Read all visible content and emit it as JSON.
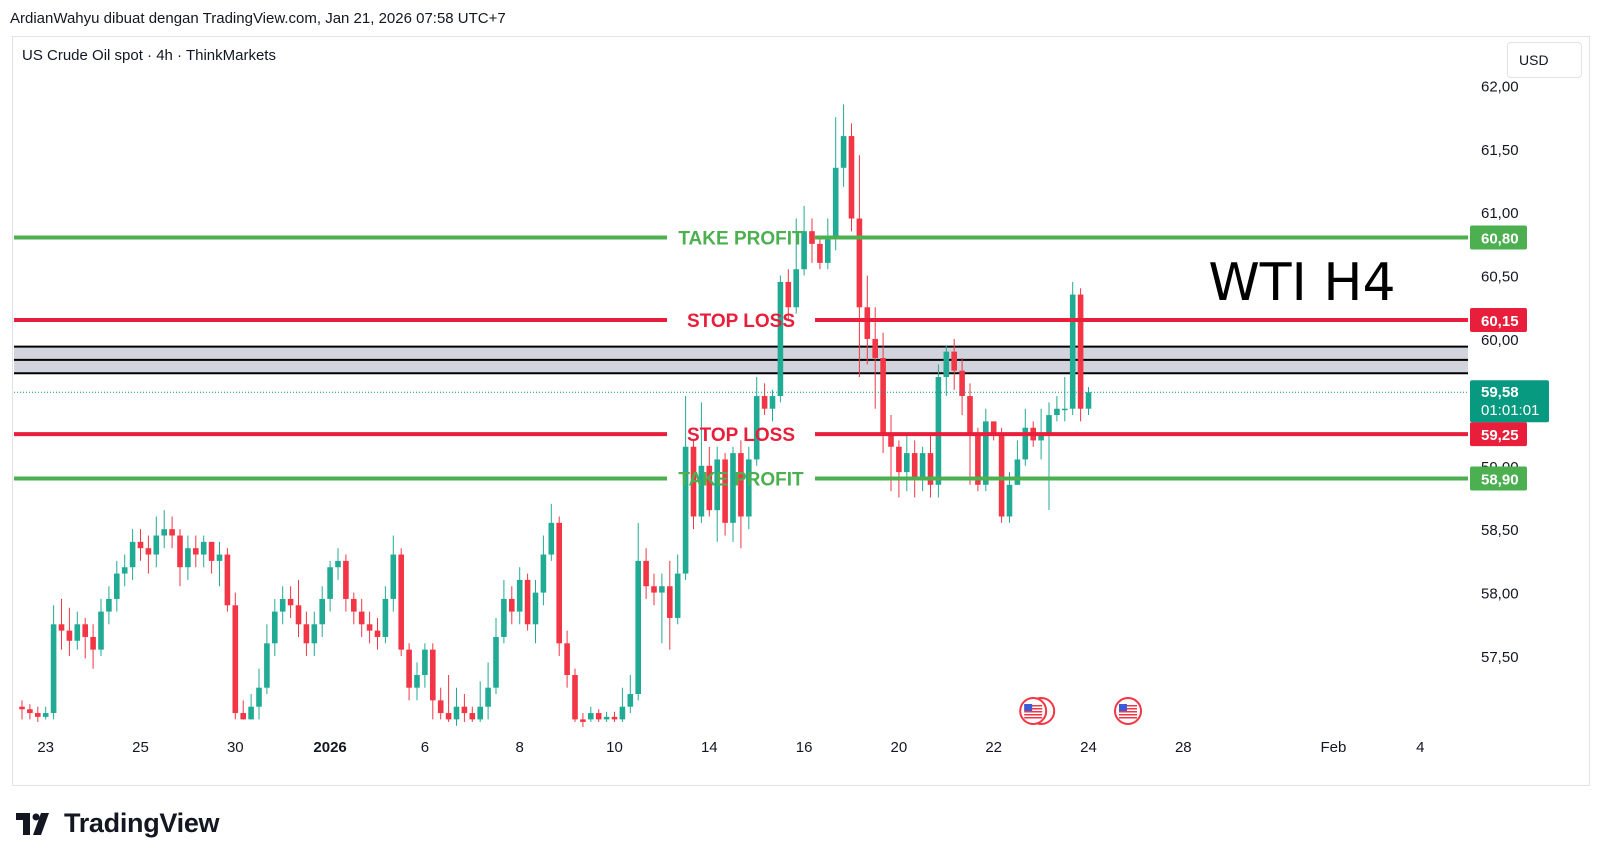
{
  "header": {
    "attribution": "ArdianWahyu dibuat dengan TradingView.com, Jan 21, 2026 07:58 UTC+7"
  },
  "symbol": {
    "label": "US Crude Oil spot · 4h · ThinkMarkets"
  },
  "currency": {
    "label": "USD"
  },
  "footer": {
    "brand": "TradingView"
  },
  "colors": {
    "up": "#22ab94",
    "down": "#f23645",
    "take_profit": "#4caf50",
    "stop_loss": "#e91e3a",
    "zone": "#d1d4dc",
    "current": "#089981"
  },
  "chart_data": {
    "type": "candlestick",
    "title": "WTI H4",
    "ylim": [
      56.94,
      62.2
    ],
    "y_ticks": [
      {
        "value": 57.5,
        "label": "57,50"
      },
      {
        "value": 58.0,
        "label": "58,00"
      },
      {
        "value": 58.5,
        "label": "58,50"
      },
      {
        "value": 59.0,
        "label": "59,00"
      },
      {
        "value": 60.0,
        "label": "60,00"
      },
      {
        "value": 60.5,
        "label": "60,50"
      },
      {
        "value": 61.0,
        "label": "61,00"
      },
      {
        "value": 61.5,
        "label": "61,50"
      },
      {
        "value": 62.0,
        "label": "62,00"
      }
    ],
    "x_ticks": [
      {
        "index": 3,
        "label": "23",
        "bold": false
      },
      {
        "index": 15,
        "label": "25",
        "bold": false
      },
      {
        "index": 27,
        "label": "30",
        "bold": false
      },
      {
        "index": 39,
        "label": "2026",
        "bold": true
      },
      {
        "index": 51,
        "label": "6",
        "bold": false
      },
      {
        "index": 63,
        "label": "8",
        "bold": false
      },
      {
        "index": 75,
        "label": "10",
        "bold": false
      },
      {
        "index": 87,
        "label": "14",
        "bold": false
      },
      {
        "index": 99,
        "label": "16",
        "bold": false
      },
      {
        "index": 111,
        "label": "20",
        "bold": false
      },
      {
        "index": 123,
        "label": "22",
        "bold": false
      },
      {
        "index": 135,
        "label": "24",
        "bold": false
      },
      {
        "index": 147,
        "label": "28",
        "bold": false
      },
      {
        "index": 166,
        "label": "Feb",
        "bold": false
      },
      {
        "index": 177,
        "label": "4",
        "bold": false
      }
    ],
    "levels": [
      {
        "name": "take-profit-upper",
        "price": 60.8,
        "price_label": "60,80",
        "text": "TAKE PROFIT",
        "kind": "take_profit"
      },
      {
        "name": "stop-loss-upper",
        "price": 60.15,
        "price_label": "60,15",
        "text": "STOP LOSS",
        "kind": "stop_loss"
      },
      {
        "name": "stop-loss-lower",
        "price": 59.25,
        "price_label": "59,25",
        "text": "STOP LOSS",
        "kind": "stop_loss"
      },
      {
        "name": "take-profit-lower",
        "price": 58.9,
        "price_label": "58,90",
        "text": "TAKE PROFIT",
        "kind": "take_profit"
      }
    ],
    "zone": {
      "top": 59.94,
      "bottom": 59.73
    },
    "current_price": {
      "price": 59.58,
      "label": "59,58",
      "countdown": "01:01:01"
    },
    "events_at_index": [
      128,
      140
    ],
    "candles": [
      [
        57.1,
        57.08,
        57.15,
        57.0
      ],
      [
        57.08,
        57.05,
        57.12,
        57.0
      ],
      [
        57.05,
        57.02,
        57.1,
        56.98
      ],
      [
        57.02,
        57.05,
        57.1,
        57.0
      ],
      [
        57.05,
        57.75,
        57.9,
        57.0
      ],
      [
        57.75,
        57.7,
        57.95,
        57.55
      ],
      [
        57.7,
        57.62,
        57.88,
        57.5
      ],
      [
        57.62,
        57.75,
        57.85,
        57.55
      ],
      [
        57.75,
        57.65,
        57.8,
        57.48
      ],
      [
        57.65,
        57.55,
        57.75,
        57.4
      ],
      [
        57.55,
        57.85,
        57.95,
        57.5
      ],
      [
        57.85,
        57.95,
        58.05,
        57.75
      ],
      [
        57.95,
        58.15,
        58.25,
        57.85
      ],
      [
        58.15,
        58.2,
        58.3,
        58.05
      ],
      [
        58.2,
        58.4,
        58.5,
        58.1
      ],
      [
        58.4,
        58.35,
        58.5,
        58.25
      ],
      [
        58.35,
        58.3,
        58.45,
        58.15
      ],
      [
        58.3,
        58.45,
        58.6,
        58.2
      ],
      [
        58.45,
        58.5,
        58.65,
        58.35
      ],
      [
        58.5,
        58.45,
        58.6,
        58.35
      ],
      [
        58.45,
        58.2,
        58.5,
        58.05
      ],
      [
        58.2,
        58.35,
        58.45,
        58.1
      ],
      [
        58.35,
        58.3,
        58.45,
        58.2
      ],
      [
        58.3,
        58.4,
        58.45,
        58.2
      ],
      [
        58.4,
        58.25,
        58.4,
        58.15
      ],
      [
        58.25,
        58.3,
        58.4,
        58.05
      ],
      [
        58.3,
        57.9,
        58.35,
        57.85
      ],
      [
        57.9,
        57.05,
        58.0,
        57.0
      ],
      [
        57.05,
        57.0,
        57.15,
        57.0
      ],
      [
        57.0,
        57.1,
        57.2,
        57.0
      ],
      [
        57.1,
        57.25,
        57.4,
        57.0
      ],
      [
        57.25,
        57.6,
        57.75,
        57.2
      ],
      [
        57.6,
        57.85,
        57.95,
        57.5
      ],
      [
        57.85,
        57.95,
        58.05,
        57.75
      ],
      [
        57.95,
        57.9,
        58.05,
        57.8
      ],
      [
        57.9,
        57.75,
        58.1,
        57.65
      ],
      [
        57.75,
        57.6,
        57.85,
        57.5
      ],
      [
        57.6,
        57.75,
        57.85,
        57.5
      ],
      [
        57.75,
        57.95,
        58.05,
        57.65
      ],
      [
        57.95,
        58.2,
        58.25,
        57.85
      ],
      [
        58.2,
        58.25,
        58.35,
        58.1
      ],
      [
        58.25,
        57.95,
        58.3,
        57.85
      ],
      [
        57.95,
        57.85,
        58.0,
        57.75
      ],
      [
        57.85,
        57.75,
        57.95,
        57.65
      ],
      [
        57.75,
        57.7,
        57.85,
        57.6
      ],
      [
        57.7,
        57.65,
        57.8,
        57.55
      ],
      [
        57.65,
        57.95,
        58.05,
        57.6
      ],
      [
        57.95,
        58.3,
        58.45,
        57.85
      ],
      [
        58.3,
        57.55,
        58.35,
        57.5
      ],
      [
        57.55,
        57.25,
        57.6,
        57.15
      ],
      [
        57.25,
        57.35,
        57.45,
        57.15
      ],
      [
        57.35,
        57.55,
        57.6,
        57.25
      ],
      [
        57.55,
        57.15,
        57.6,
        57.0
      ],
      [
        57.15,
        57.05,
        57.25,
        57.0
      ],
      [
        57.05,
        57.0,
        57.35,
        56.98
      ],
      [
        57.0,
        57.1,
        57.25,
        56.95
      ],
      [
        57.1,
        57.05,
        57.2,
        56.98
      ],
      [
        57.05,
        57.0,
        57.1,
        56.98
      ],
      [
        57.0,
        57.1,
        57.3,
        56.98
      ],
      [
        57.1,
        57.25,
        57.45,
        57.0
      ],
      [
        57.25,
        57.65,
        57.8,
        57.2
      ],
      [
        57.65,
        57.95,
        58.1,
        57.6
      ],
      [
        57.95,
        57.85,
        58.05,
        57.75
      ],
      [
        57.85,
        58.1,
        58.2,
        57.75
      ],
      [
        58.1,
        57.75,
        58.15,
        57.7
      ],
      [
        57.75,
        58.0,
        58.1,
        57.6
      ],
      [
        58.0,
        58.3,
        58.45,
        57.9
      ],
      [
        58.3,
        58.55,
        58.7,
        58.25
      ],
      [
        58.55,
        57.6,
        58.6,
        57.5
      ],
      [
        57.6,
        57.35,
        57.7,
        57.25
      ],
      [
        57.35,
        57.0,
        57.4,
        56.98
      ],
      [
        57.0,
        56.98,
        57.05,
        56.94
      ],
      [
        57.0,
        57.05,
        57.1,
        56.98
      ],
      [
        57.05,
        57.0,
        57.08,
        56.98
      ],
      [
        57.0,
        57.02,
        57.06,
        56.98
      ],
      [
        57.02,
        57.0,
        57.06,
        56.98
      ],
      [
        57.0,
        57.1,
        57.25,
        56.98
      ],
      [
        57.1,
        57.2,
        57.35,
        57.05
      ],
      [
        57.2,
        58.25,
        58.55,
        57.15
      ],
      [
        58.25,
        58.05,
        58.35,
        57.95
      ],
      [
        58.05,
        58.0,
        58.15,
        57.9
      ],
      [
        58.0,
        58.05,
        58.15,
        57.6
      ],
      [
        58.05,
        57.8,
        58.25,
        57.55
      ],
      [
        57.8,
        58.15,
        58.3,
        57.75
      ],
      [
        58.15,
        59.15,
        59.55,
        58.1
      ],
      [
        59.15,
        58.6,
        59.2,
        58.5
      ],
      [
        58.6,
        59.0,
        59.5,
        58.55
      ],
      [
        59.0,
        58.65,
        59.15,
        58.6
      ],
      [
        58.65,
        59.05,
        59.15,
        58.4
      ],
      [
        59.05,
        58.55,
        59.1,
        58.45
      ],
      [
        58.55,
        59.1,
        59.15,
        58.4
      ],
      [
        59.1,
        58.6,
        59.2,
        58.35
      ],
      [
        58.6,
        59.05,
        59.15,
        58.5
      ],
      [
        59.05,
        59.55,
        59.7,
        59.0
      ],
      [
        59.55,
        59.45,
        59.65,
        59.4
      ],
      [
        59.45,
        59.55,
        59.6,
        59.35
      ],
      [
        59.55,
        60.45,
        60.5,
        59.5
      ],
      [
        60.45,
        60.25,
        60.55,
        60.15
      ],
      [
        60.25,
        60.55,
        60.95,
        60.2
      ],
      [
        60.55,
        60.85,
        61.05,
        60.5
      ],
      [
        60.85,
        60.75,
        60.95,
        60.6
      ],
      [
        60.75,
        60.6,
        60.8,
        60.55
      ],
      [
        60.6,
        60.8,
        60.95,
        60.55
      ],
      [
        60.8,
        61.35,
        61.75,
        60.7
      ],
      [
        61.35,
        61.6,
        61.85,
        61.2
      ],
      [
        61.6,
        60.95,
        61.7,
        60.85
      ],
      [
        60.95,
        60.25,
        61.45,
        59.7
      ],
      [
        60.25,
        60.0,
        60.5,
        59.8
      ],
      [
        60.0,
        59.85,
        60.25,
        59.45
      ],
      [
        59.85,
        59.25,
        60.05,
        59.1
      ],
      [
        59.25,
        59.15,
        59.4,
        58.8
      ],
      [
        59.15,
        58.95,
        59.2,
        58.75
      ],
      [
        58.95,
        59.1,
        59.25,
        58.8
      ],
      [
        59.1,
        58.9,
        59.2,
        58.75
      ],
      [
        58.9,
        59.1,
        59.15,
        58.8
      ],
      [
        59.1,
        58.85,
        59.25,
        58.75
      ],
      [
        58.85,
        59.7,
        59.8,
        58.75
      ],
      [
        59.7,
        59.9,
        59.95,
        59.55
      ],
      [
        59.9,
        59.75,
        60.0,
        59.6
      ],
      [
        59.75,
        59.55,
        59.85,
        59.4
      ],
      [
        59.55,
        59.25,
        59.65,
        58.85
      ],
      [
        59.25,
        58.85,
        59.3,
        58.8
      ],
      [
        58.85,
        59.35,
        59.45,
        58.8
      ],
      [
        59.35,
        59.25,
        59.35,
        59.2
      ],
      [
        59.25,
        58.6,
        59.3,
        58.55
      ],
      [
        58.6,
        58.85,
        58.95,
        58.55
      ],
      [
        58.85,
        59.05,
        59.2,
        58.85
      ],
      [
        59.05,
        59.3,
        59.45,
        59.0
      ],
      [
        59.3,
        59.2,
        59.35,
        59.15
      ],
      [
        59.2,
        59.25,
        59.45,
        59.05
      ],
      [
        59.25,
        59.4,
        59.5,
        58.65
      ],
      [
        59.4,
        59.45,
        59.55,
        59.35
      ],
      [
        59.45,
        59.45,
        59.7,
        59.35
      ],
      [
        59.45,
        60.35,
        60.45,
        59.4
      ],
      [
        60.35,
        59.45,
        60.4,
        59.35
      ],
      [
        59.45,
        59.58,
        59.62,
        59.4
      ]
    ]
  }
}
